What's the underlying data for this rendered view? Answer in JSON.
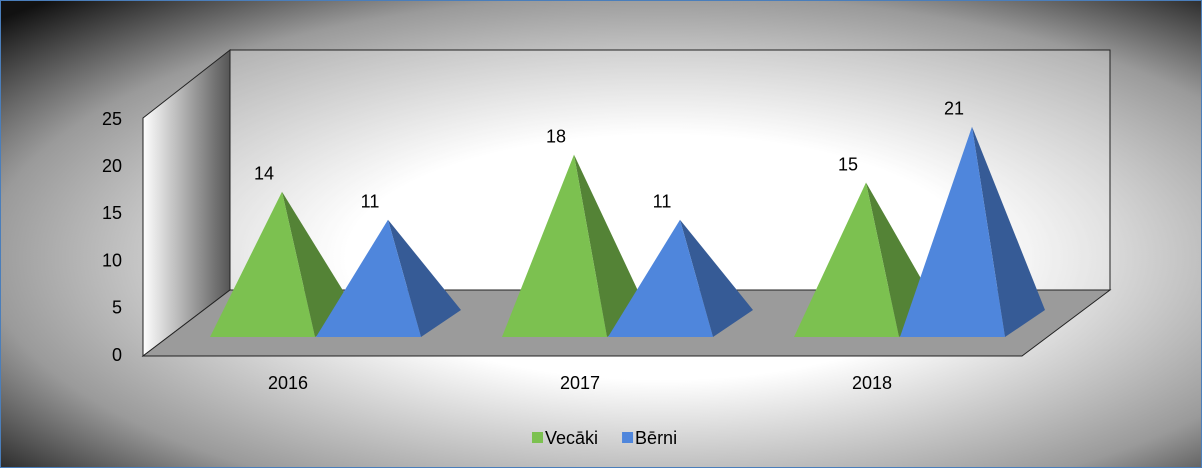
{
  "chart_data": {
    "type": "pyramid3d",
    "categories": [
      "2016",
      "2017",
      "2018"
    ],
    "series": [
      {
        "name": "Vecāki",
        "color": "#7cc150",
        "values": [
          14,
          18,
          15
        ]
      },
      {
        "name": "Bērni",
        "color": "#4f86dc",
        "values": [
          11,
          11,
          21
        ]
      }
    ],
    "ylim": [
      0,
      25
    ],
    "yticks": [
      0,
      5,
      10,
      15,
      20,
      25
    ],
    "legend": "bottom"
  }
}
